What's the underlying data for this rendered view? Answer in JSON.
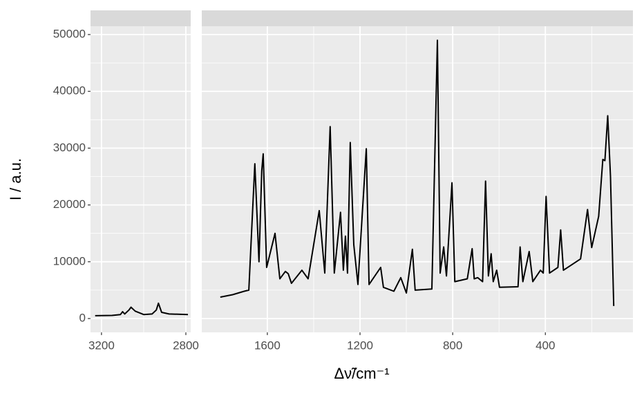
{
  "chart_data": [
    {
      "type": "line",
      "color": "#000000",
      "ylabel": "I / a.u.",
      "xlim": [
        3252,
        2777
      ],
      "xticks": [
        3200,
        2800
      ],
      "xminor": [
        3000
      ],
      "ylim": [
        -2433,
        51460
      ],
      "yticks": [
        0,
        10000,
        20000,
        30000,
        40000,
        50000
      ],
      "yminor": [
        5000,
        15000,
        25000,
        35000,
        45000
      ],
      "x": [
        3230,
        3150,
        3110,
        3100,
        3090,
        3070,
        3060,
        3040,
        3000,
        2960,
        2940,
        2930,
        2915,
        2880,
        2790
      ],
      "values": [
        500,
        550,
        700,
        1200,
        800,
        1500,
        2000,
        1300,
        700,
        800,
        1500,
        2700,
        1100,
        800,
        700
      ]
    },
    {
      "type": "line",
      "color": "#000000",
      "xlabel": "Δν̃/cm⁻¹",
      "xlim": [
        1883,
        22
      ],
      "xticks": [
        1600,
        1200,
        800,
        400
      ],
      "xminor": [
        1400,
        1000,
        600,
        200
      ],
      "ylim": [
        -2433,
        51460
      ],
      "yticks": [
        0,
        10000,
        20000,
        30000,
        40000,
        50000
      ],
      "yminor": [
        5000,
        15000,
        25000,
        35000,
        45000
      ],
      "x": [
        1803,
        1750,
        1700,
        1680,
        1654,
        1636,
        1624,
        1618,
        1603,
        1567,
        1546,
        1522,
        1510,
        1496,
        1451,
        1424,
        1376,
        1352,
        1329,
        1311,
        1284,
        1272,
        1263,
        1254,
        1242,
        1227,
        1209,
        1173,
        1161,
        1111,
        1099,
        1054,
        1024,
        1000,
        974,
        962,
        890,
        866,
        854,
        839,
        827,
        803,
        791,
        737,
        716,
        707,
        692,
        671,
        658,
        646,
        634,
        625,
        610,
        598,
        518,
        509,
        497,
        470,
        454,
        421,
        409,
        397,
        382,
        346,
        334,
        322,
        248,
        218,
        200,
        170,
        152,
        143,
        131,
        119,
        105
      ],
      "values": [
        3770,
        4200,
        4800,
        5000,
        27250,
        10000,
        26000,
        29000,
        9000,
        15000,
        7000,
        8300,
        7900,
        6200,
        8500,
        7000,
        19000,
        8000,
        33800,
        8000,
        18700,
        8500,
        14500,
        8000,
        31000,
        13000,
        6000,
        29900,
        6000,
        9000,
        5500,
        4800,
        7200,
        4500,
        12200,
        5000,
        5200,
        49000,
        8000,
        12600,
        7500,
        23900,
        6500,
        7000,
        12300,
        7000,
        7200,
        6500,
        24200,
        7500,
        11400,
        6500,
        8500,
        5500,
        5600,
        12600,
        6500,
        11800,
        6500,
        8500,
        8000,
        21500,
        8000,
        9000,
        15600,
        8500,
        10500,
        19200,
        12500,
        18000,
        28000,
        27800,
        35700,
        25000,
        2200
      ]
    }
  ]
}
